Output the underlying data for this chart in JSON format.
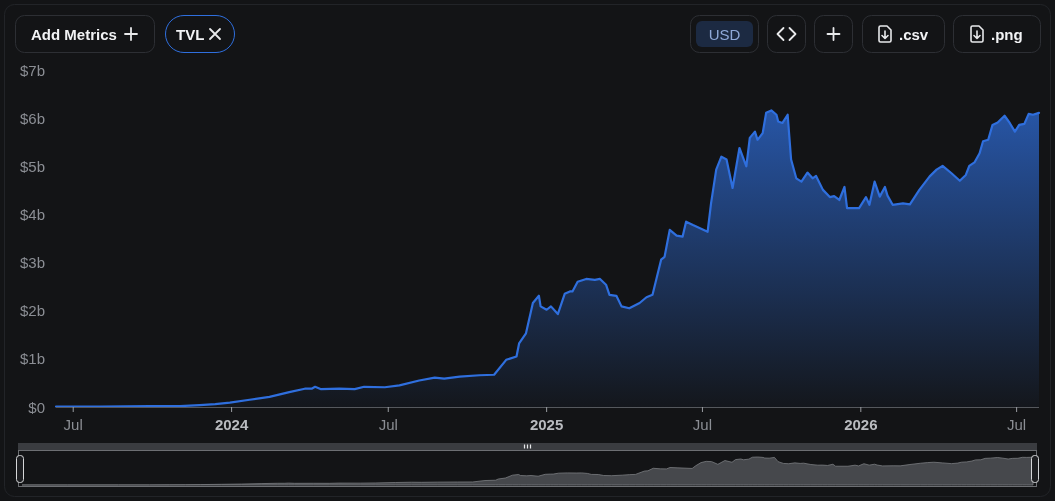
{
  "chart_data": {
    "type": "area",
    "color": "#2f6fde",
    "x": [
      "2023-06-11",
      "2023-08-01",
      "2023-09-28",
      "2023-11-02",
      "2023-11-25",
      "2023-12-13",
      "2023-12-30",
      "2024-01-22",
      "2024-02-14",
      "2024-03-08",
      "2024-03-26",
      "2024-04-03",
      "2024-04-07",
      "2024-04-14",
      "2024-05-05",
      "2024-05-23",
      "2024-06-03",
      "2024-06-27",
      "2024-07-14",
      "2024-08-06",
      "2024-08-24",
      "2024-09-04",
      "2024-09-22",
      "2024-10-15",
      "2024-11-01",
      "2024-11-15",
      "2024-11-27",
      "2024-11-30",
      "2024-12-08",
      "2024-12-16",
      "2024-12-23",
      "2024-12-25",
      "2025-01-01",
      "2025-01-06",
      "2025-01-14",
      "2025-01-22",
      "2025-01-28",
      "2025-01-31",
      "2025-02-06",
      "2025-02-16",
      "2025-02-26",
      "2025-03-04",
      "2025-03-11",
      "2025-03-15",
      "2025-03-23",
      "2025-03-29",
      "2025-04-07",
      "2025-04-19",
      "2025-04-27",
      "2025-05-04",
      "2025-05-14",
      "2025-05-18",
      "2025-05-24",
      "2025-06-01",
      "2025-06-08",
      "2025-06-12",
      "2025-06-20",
      "2025-07-07",
      "2025-07-11",
      "2025-07-17",
      "2025-07-23",
      "2025-07-29",
      "2025-08-05",
      "2025-08-13",
      "2025-08-21",
      "2025-08-25",
      "2025-08-31",
      "2025-09-03",
      "2025-09-09",
      "2025-09-13",
      "2025-09-19",
      "2025-09-25",
      "2025-09-27",
      "2025-10-02",
      "2025-10-08",
      "2025-10-12",
      "2025-10-18",
      "2025-10-24",
      "2025-10-31",
      "2025-11-06",
      "2025-11-10",
      "2025-11-18",
      "2025-11-26",
      "2025-12-01",
      "2025-12-07",
      "2025-12-13",
      "2025-12-16",
      "2025-12-30",
      "2026-01-07",
      "2026-01-11",
      "2026-01-17",
      "2026-01-23",
      "2026-01-29",
      "2026-02-01",
      "2026-02-07",
      "2026-02-19",
      "2026-02-27",
      "2026-03-10",
      "2026-03-22",
      "2026-03-30",
      "2026-04-06",
      "2026-04-16",
      "2026-04-26",
      "2026-05-03",
      "2026-05-07",
      "2026-05-13",
      "2026-05-19",
      "2026-05-23",
      "2026-05-29",
      "2026-06-03",
      "2026-06-09",
      "2026-06-17",
      "2026-06-23",
      "2026-06-29",
      "2026-07-04",
      "2026-07-10",
      "2026-07-15",
      "2026-07-20",
      "2026-07-27"
    ],
    "values": [
      0.01,
      0.01,
      0.02,
      0.02,
      0.04,
      0.06,
      0.09,
      0.15,
      0.21,
      0.31,
      0.38,
      0.38,
      0.42,
      0.37,
      0.38,
      0.37,
      0.42,
      0.41,
      0.45,
      0.55,
      0.61,
      0.59,
      0.63,
      0.66,
      0.67,
      0.98,
      1.05,
      1.32,
      1.53,
      2.16,
      2.31,
      2.09,
      2.02,
      2.09,
      1.93,
      2.35,
      2.4,
      2.4,
      2.6,
      2.66,
      2.64,
      2.66,
      2.54,
      2.33,
      2.31,
      2.09,
      2.05,
      2.16,
      2.28,
      2.33,
      3.06,
      3.12,
      3.68,
      3.56,
      3.54,
      3.85,
      3.78,
      3.64,
      4.23,
      4.93,
      5.2,
      5.14,
      4.55,
      5.38,
      5.0,
      5.59,
      5.72,
      5.55,
      5.69,
      6.11,
      6.16,
      6.07,
      5.93,
      5.9,
      6.07,
      5.14,
      4.75,
      4.68,
      4.87,
      4.75,
      4.8,
      4.51,
      4.36,
      4.38,
      4.3,
      4.57,
      4.13,
      4.13,
      4.36,
      4.2,
      4.68,
      4.37,
      4.57,
      4.39,
      4.2,
      4.23,
      4.21,
      4.51,
      4.79,
      4.93,
      5.01,
      4.86,
      4.7,
      4.82,
      5.01,
      5.08,
      5.27,
      5.52,
      5.55,
      5.86,
      5.91,
      6.05,
      5.9,
      5.72,
      5.86,
      5.88,
      6.09,
      6.07,
      6.11
    ],
    "xlim": [
      "2023-06-11",
      "2026-07-27"
    ],
    "xticks": [
      {
        "value": "2023-07-01",
        "label": "Jul"
      },
      {
        "value": "2024-01-01",
        "label": "2024"
      },
      {
        "value": "2024-07-01",
        "label": "Jul"
      },
      {
        "value": "2025-01-01",
        "label": "2025"
      },
      {
        "value": "2025-07-01",
        "label": "Jul"
      },
      {
        "value": "2026-01-01",
        "label": "2026"
      },
      {
        "value": "2026-07-01",
        "label": "Jul"
      }
    ],
    "ylim": [
      0,
      7
    ],
    "yticks": [
      {
        "value": 0,
        "label": "$0"
      },
      {
        "value": 1,
        "label": "$1b"
      },
      {
        "value": 2,
        "label": "$2b"
      },
      {
        "value": 3,
        "label": "$3b"
      },
      {
        "value": 4,
        "label": "$4b"
      },
      {
        "value": 5,
        "label": "$5b"
      },
      {
        "value": 6,
        "label": "$6b"
      },
      {
        "value": 7,
        "label": "$7b"
      }
    ],
    "annotations": [
      "Add Metrics",
      "TVL",
      "USD",
      ".csv",
      ".png"
    ]
  }
}
